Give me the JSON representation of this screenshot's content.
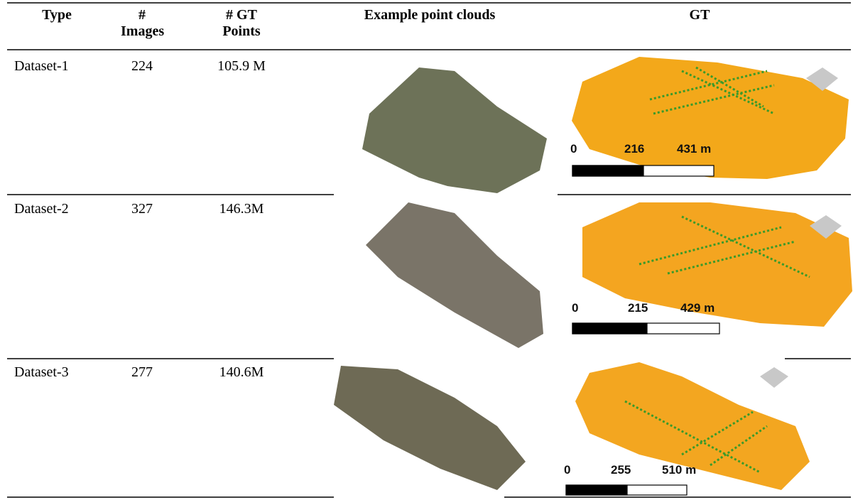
{
  "header": {
    "columns": [
      "Type",
      "# Images",
      "# GT Points",
      "Example point clouds",
      "GT"
    ]
  },
  "table": {
    "rows": [
      [
        "Dataset-1",
        "224",
        "105.9 M"
      ],
      [
        "Dataset-2",
        "327",
        "146.3M"
      ],
      [
        "Dataset-3",
        "277",
        "140.6M"
      ]
    ]
  },
  "gt_scales": [
    [
      "0",
      "216",
      "431 m"
    ],
    [
      "0",
      "215",
      "429 m"
    ],
    [
      "0",
      "255",
      "510 m"
    ]
  ]
}
